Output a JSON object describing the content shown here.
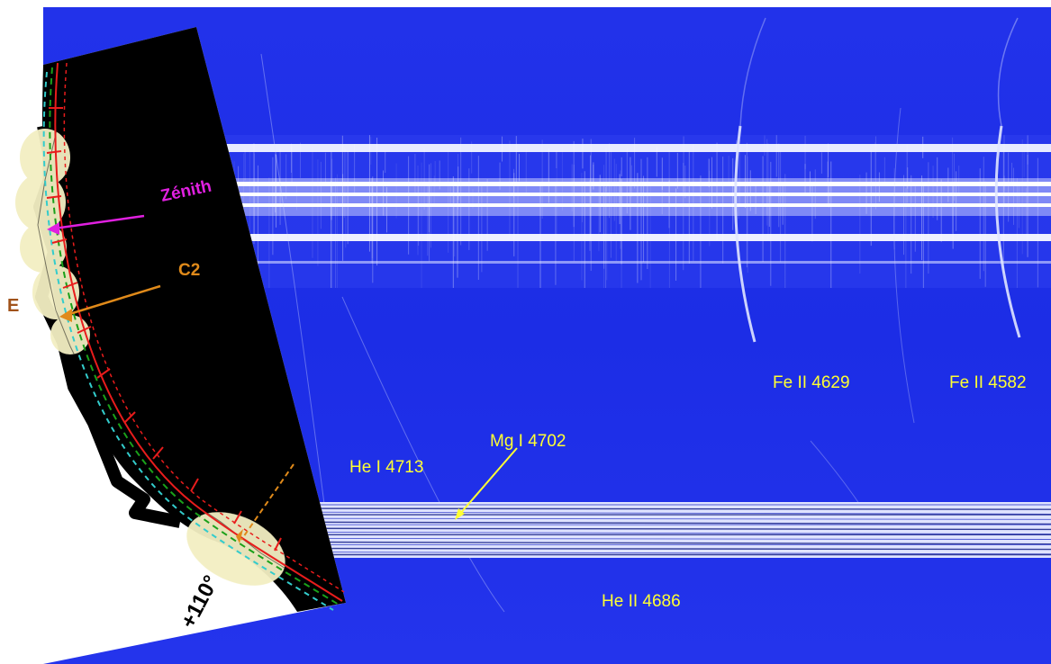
{
  "labels": {
    "fe_ii_4629": "Fe II 4629",
    "fe_ii_4582": "Fe II 4582",
    "mg_i_4702": "Mg I 4702",
    "he_i_4713": "He I 4713",
    "he_ii_4686": "He II 4686",
    "zenith": "Zénith",
    "c2": "C2",
    "east": "E",
    "angle": "+110°"
  },
  "colors": {
    "spectrum_bg": "#1f2fe8",
    "line_label": "#ffff33",
    "zenith_marker": "#e020e0",
    "c2_marker": "#e08a1a",
    "east_label": "#a0521a",
    "limb_red": "#e81c1c",
    "limb_green": "#1aa01a",
    "limb_cyan": "#33cccc",
    "prominence_fill": "#f3efc2"
  }
}
